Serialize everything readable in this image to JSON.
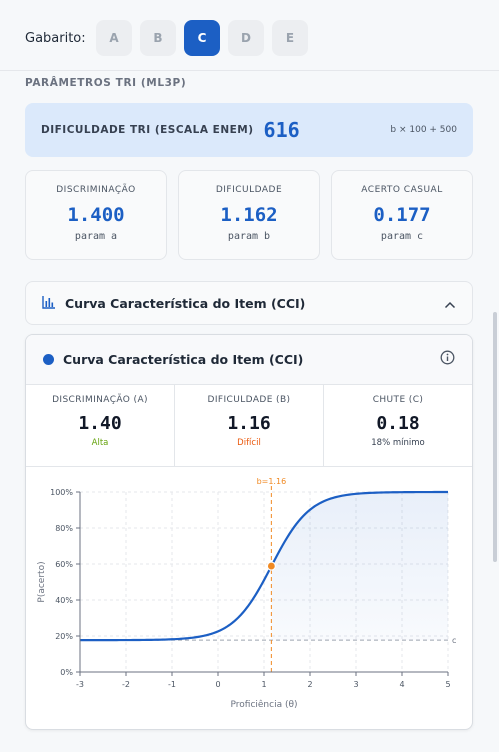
{
  "gabarito": {
    "label": "Gabarito:",
    "options": [
      "A",
      "B",
      "C",
      "D",
      "E"
    ],
    "selected": "C"
  },
  "section_title": "PARÂMETROS TRI (ML3P)",
  "tri": {
    "label": "DIFICULDADE TRI (ESCALA ENEM)",
    "value": "616",
    "formula": "b × 100 + 500"
  },
  "params": [
    {
      "title": "DISCRIMINAÇÃO",
      "value": "1.400",
      "sub": "param a"
    },
    {
      "title": "DIFICULDADE",
      "value": "1.162",
      "sub": "param b"
    },
    {
      "title": "ACERTO CASUAL",
      "value": "0.177",
      "sub": "param c"
    }
  ],
  "accordion": {
    "title": "Curva Característica do Item (CCI)",
    "icon": "bar-chart-icon",
    "state": "expanded"
  },
  "card": {
    "title": "Curva Característica do Item (CCI)",
    "stats": [
      {
        "title": "DISCRIMINAÇÃO (A)",
        "value": "1.40",
        "sub": "Alta",
        "sub_color": "#65a30d"
      },
      {
        "title": "DIFICULDADE (B)",
        "value": "1.16",
        "sub": "Difícil",
        "sub_color": "#ea580c"
      },
      {
        "title": "CHUTE (C)",
        "value": "0.18",
        "sub": "18% mínimo",
        "sub_color": "#374151"
      }
    ]
  },
  "colors": {
    "accent": "#1c5fc4",
    "marker": "#f08a24"
  },
  "chart_data": {
    "type": "line",
    "model": "3PL",
    "params": {
      "a": 1.4,
      "b": 1.162,
      "c": 0.177
    },
    "xlabel": "Proficiência (θ)",
    "ylabel": "P(acerto)",
    "xlim": [
      -3,
      5
    ],
    "ylim": [
      0,
      1
    ],
    "xticks": [
      "-3",
      "-2",
      "-1",
      "0",
      "1",
      "2",
      "3",
      "4",
      "5"
    ],
    "yticks": [
      "0%",
      "20%",
      "40%",
      "60%",
      "80%",
      "100%"
    ],
    "b_marker_label": "b=1.16",
    "c_line_label": "c",
    "grid": true,
    "point": {
      "x": 1.16,
      "y": 0.59
    }
  }
}
